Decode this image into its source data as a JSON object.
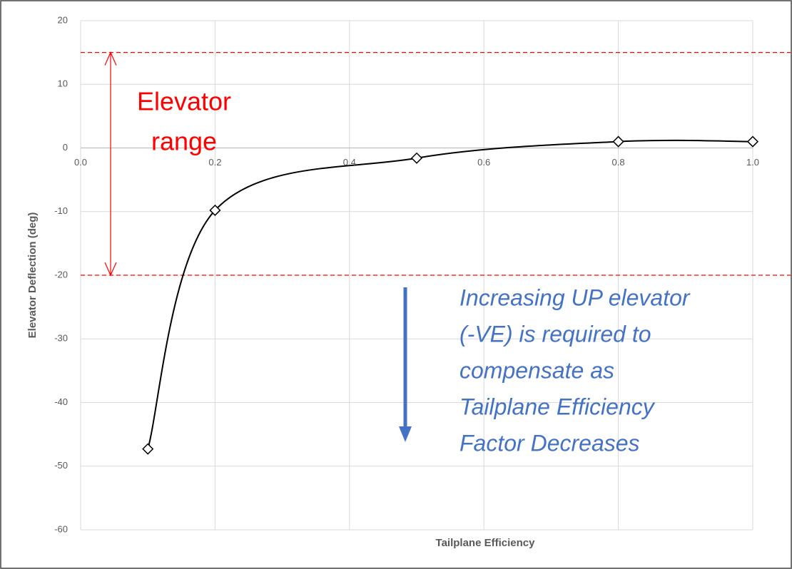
{
  "chart_data": {
    "type": "line",
    "x_label": "Tailplane Efficiency",
    "y_label": "Elevator Deflection (deg)",
    "x": [
      0.1,
      0.2,
      0.5,
      0.8,
      1.0
    ],
    "series": [
      {
        "color": "#000000",
        "values": [
          -47.3,
          -9.8,
          -1.6,
          1.0,
          1.0
        ]
      }
    ],
    "xlim": [
      0,
      1
    ],
    "ylim": [
      -60,
      20
    ],
    "xticks": [
      {
        "value": 0,
        "label": "0.0"
      },
      {
        "value": 0.2,
        "label": "0.2"
      },
      {
        "value": 0.4,
        "label": "0.4"
      },
      {
        "value": 0.6,
        "label": "0.6"
      },
      {
        "value": 0.8,
        "label": "0.8"
      },
      {
        "value": 1,
        "label": "1.0"
      }
    ],
    "yticks": [
      20,
      10,
      0,
      -10,
      -20,
      -30,
      -40,
      -50,
      -60
    ],
    "grid": true,
    "reference_lines": {
      "color": "#ff0000",
      "values": [
        15,
        -20
      ]
    },
    "annotations": [
      {
        "lines": [
          "Elevator",
          "range"
        ],
        "color": "#ff0000"
      },
      {
        "lines": [
          "Increasing UP elevator",
          "(-VE) is required to",
          "compensate as",
          "Tailplane Efficiency",
          "Factor Decreases"
        ],
        "color": "#4472c4"
      }
    ]
  }
}
